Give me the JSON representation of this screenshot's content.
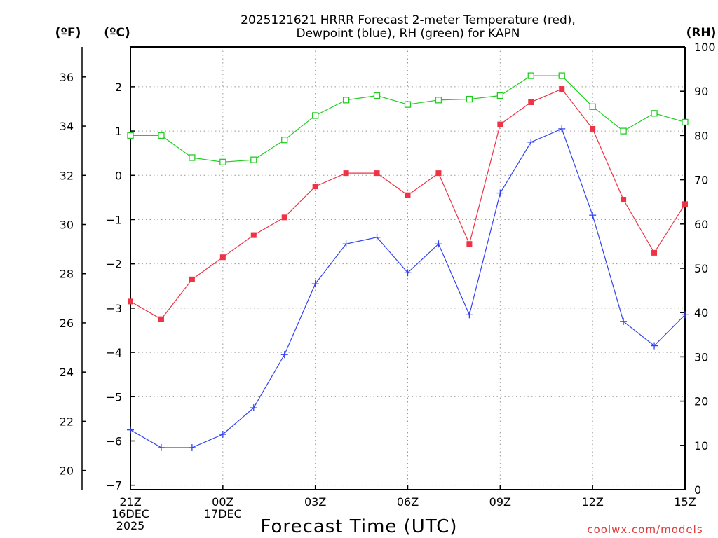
{
  "chart_data": {
    "type": "line",
    "title": [
      "2025121621 HRRR Forecast 2-meter Temperature (red),",
      "Dewpoint (blue), RH (green) for KAPN"
    ],
    "xlabel": "Forecast Time (UTC)",
    "units": {
      "fahrenheit": "(ºF)",
      "celsius": "(ºC)",
      "rh": "(RH)"
    },
    "credit": "coolwx.com/models",
    "x": [
      "21Z",
      "22Z",
      "23Z",
      "00Z",
      "01Z",
      "02Z",
      "03Z",
      "04Z",
      "05Z",
      "06Z",
      "07Z",
      "08Z",
      "09Z",
      "10Z",
      "11Z",
      "12Z",
      "13Z",
      "14Z",
      "15Z"
    ],
    "x_ticks": [
      {
        "index": 0,
        "lines": [
          "21Z",
          "16DEC",
          "2025"
        ]
      },
      {
        "index": 3,
        "lines": [
          "00Z",
          "17DEC"
        ]
      },
      {
        "index": 6,
        "lines": [
          "03Z"
        ]
      },
      {
        "index": 9,
        "lines": [
          "06Z"
        ]
      },
      {
        "index": 12,
        "lines": [
          "09Z"
        ]
      },
      {
        "index": 15,
        "lines": [
          "12Z"
        ]
      },
      {
        "index": 18,
        "lines": [
          "15Z"
        ]
      }
    ],
    "axes": {
      "celsius": {
        "range": [
          -7.1,
          2.9
        ],
        "ticks": [
          "2",
          "1",
          "0",
          "−1",
          "−2",
          "−3",
          "−4",
          "−5",
          "−6",
          "−7"
        ],
        "tick_values": [
          2,
          1,
          0,
          -1,
          -2,
          -3,
          -4,
          -5,
          -6,
          -7
        ]
      },
      "fahrenheit": {
        "ticks": [
          "36",
          "34",
          "32",
          "30",
          "28",
          "26",
          "24",
          "22",
          "20"
        ],
        "tick_values": [
          36,
          34,
          32,
          30,
          28,
          26,
          24,
          22,
          20
        ]
      },
      "rh": {
        "range": [
          0,
          100
        ],
        "ticks": [
          "100",
          "90",
          "80",
          "70",
          "60",
          "50",
          "40",
          "30",
          "20",
          "10",
          "0"
        ],
        "tick_values": [
          100,
          90,
          80,
          70,
          60,
          50,
          40,
          30,
          20,
          10,
          0
        ]
      }
    },
    "series": [
      {
        "name": "Temperature",
        "axis": "celsius",
        "color": "#ee3344",
        "marker": "filled-square",
        "values": [
          -2.85,
          -3.25,
          -2.35,
          -1.85,
          -1.35,
          -0.95,
          -0.25,
          0.05,
          0.05,
          -0.45,
          0.05,
          -1.55,
          1.15,
          1.65,
          1.95,
          1.05,
          -0.55,
          -1.75,
          -0.65
        ]
      },
      {
        "name": "Dewpoint",
        "axis": "celsius",
        "color": "#3344ee",
        "marker": "plus",
        "values": [
          -5.75,
          -6.15,
          -6.15,
          -5.85,
          -5.25,
          -4.05,
          -2.45,
          -1.55,
          -1.4,
          -2.2,
          -1.55,
          -3.15,
          -0.4,
          0.75,
          1.05,
          -0.9,
          -3.3,
          -3.85,
          -3.15
        ]
      },
      {
        "name": "RH",
        "axis": "rh",
        "color": "#22cc22",
        "marker": "open-square",
        "values": [
          80,
          80,
          75,
          74,
          74.5,
          79,
          84.5,
          88,
          89,
          87,
          88,
          88.2,
          89,
          93.5,
          93.5,
          86.5,
          81,
          85,
          83
        ]
      }
    ],
    "grid": true
  }
}
